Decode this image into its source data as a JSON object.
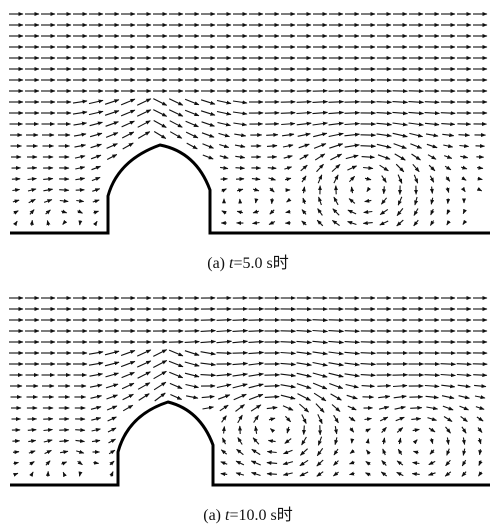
{
  "panels": [
    {
      "caption": {
        "label": "(a)",
        "variable": "t",
        "rest": "=5.0 s时"
      }
    },
    {
      "caption": {
        "label": "(a)",
        "variable": "t",
        "rest": "=10.0 s时"
      }
    }
  ]
}
